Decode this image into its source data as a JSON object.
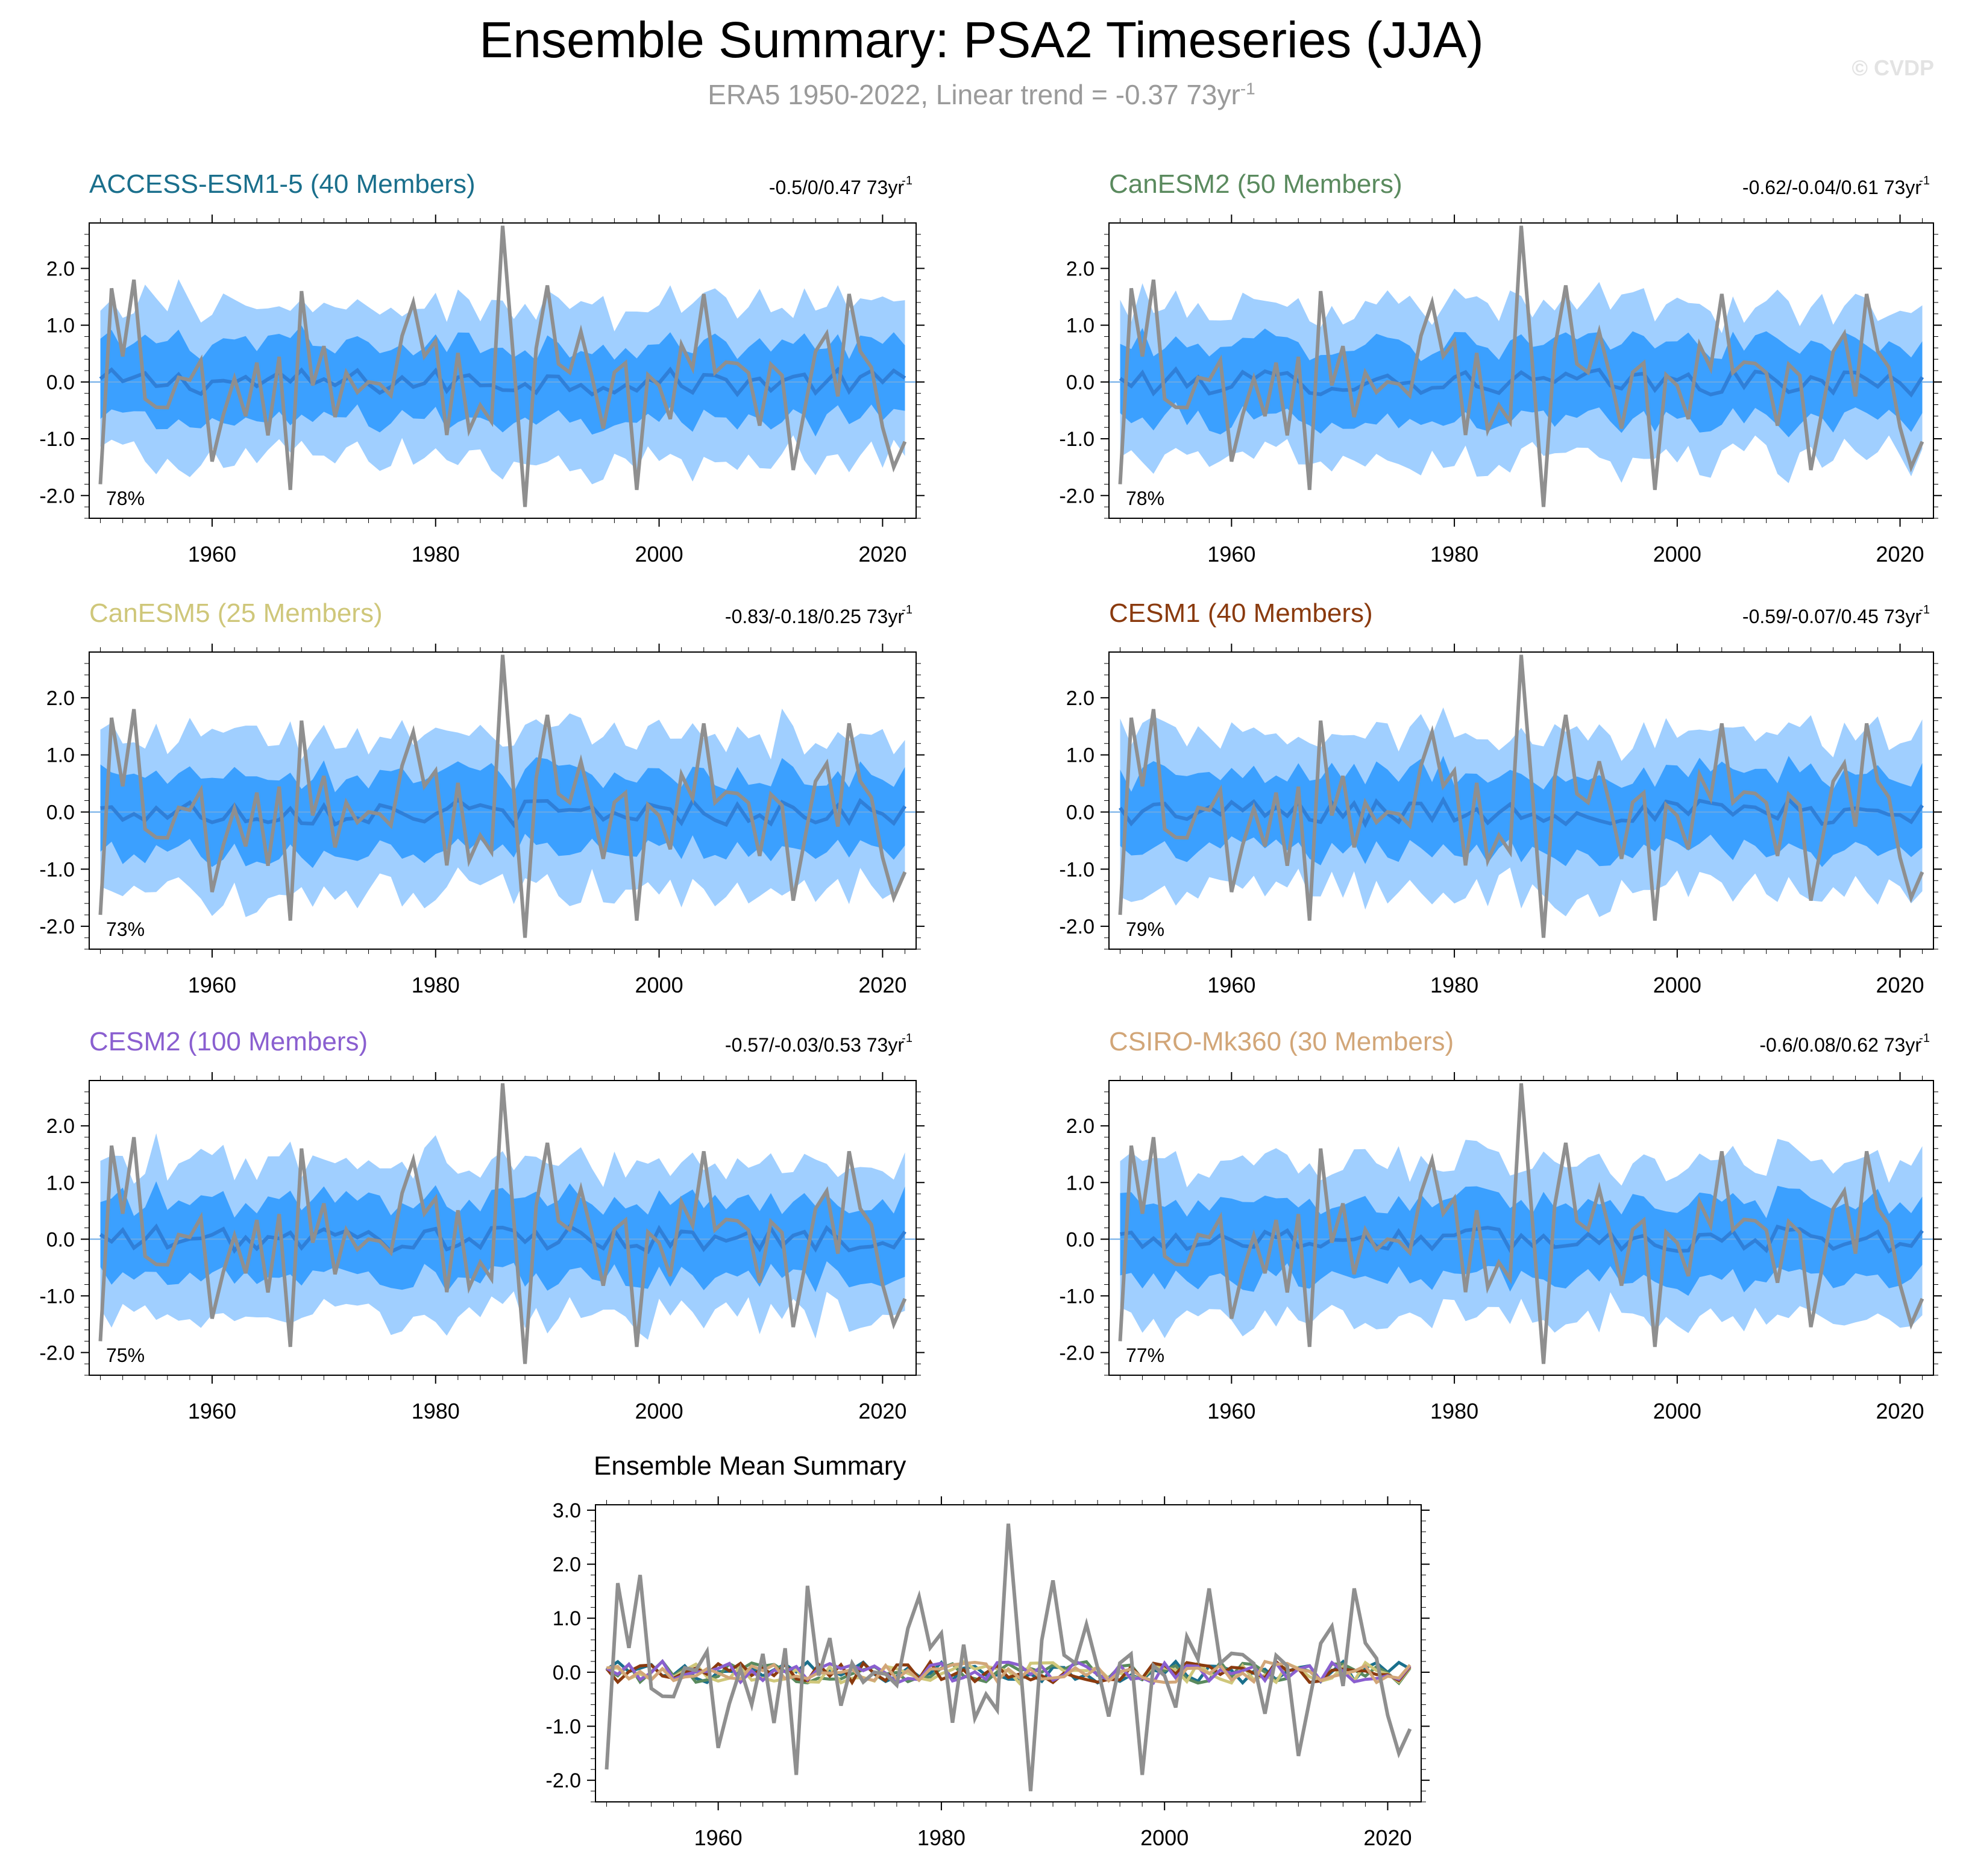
{
  "title": "Ensemble Summary: PSA2 Timeseries (JJA)",
  "subtitle_main": "ERA5 1950-2022, Linear trend = -0.37 73yr",
  "subtitle_sup": "-1",
  "watermark": "© CVDP",
  "colors": {
    "outer_band": "#a0cfff",
    "inner_band": "#3ba0ff",
    "ens_mean": "#2f7fd8",
    "obs": "#8f8f8f"
  },
  "chart_data": [
    {
      "type": "line",
      "title": "ACCESS-ESM1-5 (40 Members)",
      "title_color": "#1a6f8c",
      "trend_range": "-0.5/0/0.47 73yr",
      "trend_sup": "-1",
      "percent": "78%",
      "xlim": [
        1949,
        2023
      ],
      "ylim": [
        -2.4,
        2.8
      ],
      "xticks": [
        1960,
        1980,
        2000,
        2020
      ],
      "yticks": [
        -2.0,
        -1.0,
        0.0,
        1.0,
        2.0
      ],
      "ytick_labels": [
        "-2.0",
        "-1.0",
        "0.0",
        "1.0",
        "2.0"
      ]
    },
    {
      "type": "line",
      "title": "CanESM2 (50 Members)",
      "title_color": "#5a8a5e",
      "trend_range": "-0.62/-0.04/0.61 73yr",
      "trend_sup": "-1",
      "percent": "78%",
      "xlim": [
        1949,
        2023
      ],
      "ylim": [
        -2.4,
        2.8
      ],
      "xticks": [
        1960,
        1980,
        2000,
        2020
      ],
      "yticks": [
        -2.0,
        -1.0,
        0.0,
        1.0,
        2.0
      ],
      "ytick_labels": [
        "-2.0",
        "-1.0",
        "0.0",
        "1.0",
        "2.0"
      ]
    },
    {
      "type": "line",
      "title": "CanESM5 (25 Members)",
      "title_color": "#cfc77a",
      "trend_range": "-0.83/-0.18/0.25 73yr",
      "trend_sup": "-1",
      "percent": "73%",
      "xlim": [
        1949,
        2023
      ],
      "ylim": [
        -2.4,
        2.8
      ],
      "xticks": [
        1960,
        1980,
        2000,
        2020
      ],
      "yticks": [
        -2.0,
        -1.0,
        0.0,
        1.0,
        2.0
      ],
      "ytick_labels": [
        "-2.0",
        "-1.0",
        "0.0",
        "1.0",
        "2.0"
      ]
    },
    {
      "type": "line",
      "title": "CESM1 (40 Members)",
      "title_color": "#8a3a0e",
      "trend_range": "-0.59/-0.07/0.45 73yr",
      "trend_sup": "-1",
      "percent": "79%",
      "xlim": [
        1949,
        2023
      ],
      "ylim": [
        -2.4,
        2.8
      ],
      "xticks": [
        1960,
        1980,
        2000,
        2020
      ],
      "yticks": [
        -2.0,
        -1.0,
        0.0,
        1.0,
        2.0
      ],
      "ytick_labels": [
        "-2.0",
        "-1.0",
        "0.0",
        "1.0",
        "2.0"
      ]
    },
    {
      "type": "line",
      "title": "CESM2 (100 Members)",
      "title_color": "#8a5fd0",
      "trend_range": "-0.57/-0.03/0.53 73yr",
      "trend_sup": "-1",
      "percent": "75%",
      "xlim": [
        1949,
        2023
      ],
      "ylim": [
        -2.4,
        2.8
      ],
      "xticks": [
        1960,
        1980,
        2000,
        2020
      ],
      "yticks": [
        -2.0,
        -1.0,
        0.0,
        1.0,
        2.0
      ],
      "ytick_labels": [
        "-2.0",
        "-1.0",
        "0.0",
        "1.0",
        "2.0"
      ]
    },
    {
      "type": "line",
      "title": "CSIRO-Mk360 (30 Members)",
      "title_color": "#d2a678",
      "trend_range": "-0.6/0.08/0.62 73yr",
      "trend_sup": "-1",
      "percent": "77%",
      "xlim": [
        1949,
        2023
      ],
      "ylim": [
        -2.4,
        2.8
      ],
      "xticks": [
        1960,
        1980,
        2000,
        2020
      ],
      "yticks": [
        -2.0,
        -1.0,
        0.0,
        1.0,
        2.0
      ],
      "ytick_labels": [
        "-2.0",
        "-1.0",
        "0.0",
        "1.0",
        "2.0"
      ]
    },
    {
      "type": "line",
      "title": "Ensemble Mean Summary",
      "xlim": [
        1949,
        2023
      ],
      "ylim": [
        -2.4,
        3.1
      ],
      "xticks": [
        1960,
        1980,
        2000,
        2020
      ],
      "yticks": [
        -2.0,
        -1.0,
        0.0,
        1.0,
        2.0,
        3.0
      ],
      "ytick_labels": [
        "-2.0",
        "-1.0",
        "0.0",
        "1.0",
        "2.0",
        "3.0"
      ],
      "series_colors": [
        "#1a6f8c",
        "#5a8a5e",
        "#cfc77a",
        "#8a3a0e",
        "#8a5fd0",
        "#d2a678",
        "#8f8f8f"
      ]
    }
  ]
}
